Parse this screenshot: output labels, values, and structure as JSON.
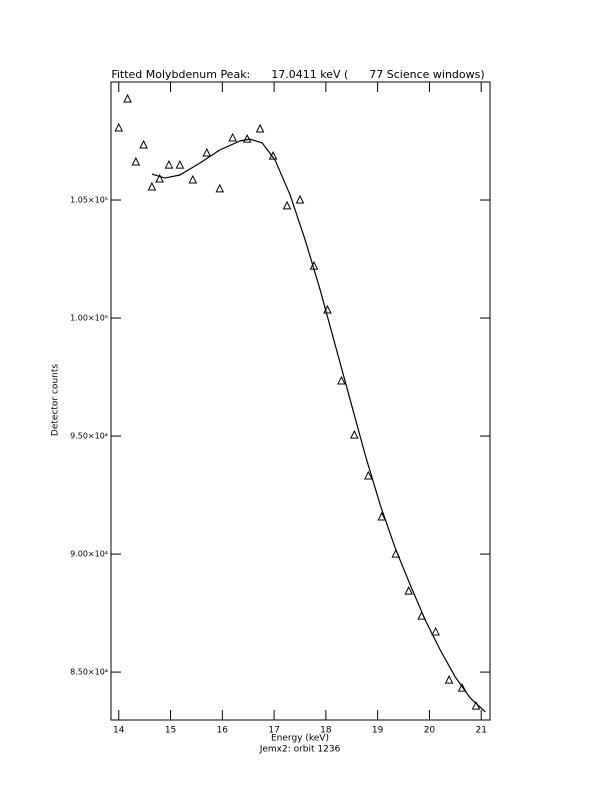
{
  "chart_data": {
    "type": "scatter",
    "title": "Fitted Molybdenum Peak:      17.0411 keV (      77 Science windows)",
    "xlabel": "Energy (keV)",
    "ylabel": "Detector counts",
    "footer": "Jemx2: orbit 1236",
    "xlim": [
      13.85,
      21.17
    ],
    "ylim": [
      82970,
      110000
    ],
    "xticks": [
      14,
      15,
      16,
      17,
      18,
      19,
      20,
      21
    ],
    "yticks": [
      {
        "value": 85000,
        "label": "8.50×10⁴"
      },
      {
        "value": 90000,
        "label": "9.00×10⁴"
      },
      {
        "value": 95000,
        "label": "9.50×10⁴"
      },
      {
        "value": 100000,
        "label": "1.00×10⁵"
      },
      {
        "value": 105000,
        "label": "1.05×10⁵"
      }
    ],
    "series": [
      {
        "type": "scatter",
        "marker": "triangle",
        "color": "#000000",
        "x": [
          14.0,
          14.17,
          14.33,
          14.48,
          14.64,
          14.79,
          14.97,
          15.18,
          15.43,
          15.7,
          15.95,
          16.2,
          16.48,
          16.73,
          16.98,
          17.25,
          17.5,
          17.77,
          18.03,
          18.3,
          18.55,
          18.82,
          19.08,
          19.35,
          19.6,
          19.85,
          20.12,
          20.38,
          20.63,
          20.9
        ],
        "values": [
          108050,
          109280,
          106610,
          107330,
          105550,
          105890,
          106480,
          106480,
          105850,
          106990,
          105470,
          107630,
          107580,
          108010,
          106860,
          104750,
          105000,
          102200,
          100340,
          97330,
          95040,
          93310,
          91570,
          90000,
          88430,
          87370,
          86700,
          84660,
          84320,
          83560
        ]
      },
      {
        "type": "line",
        "color": "#000000",
        "x": [
          14.64,
          14.89,
          15.18,
          15.57,
          15.95,
          16.34,
          16.53,
          16.77,
          17.02,
          17.31,
          17.6,
          17.89,
          18.18,
          18.47,
          18.76,
          19.05,
          19.34,
          19.63,
          19.92,
          20.21,
          20.5,
          20.79,
          21.08
        ],
        "values": [
          106100,
          105930,
          106060,
          106570,
          107120,
          107500,
          107580,
          107420,
          106690,
          105210,
          103310,
          101190,
          98860,
          96530,
          94200,
          92080,
          90250,
          88690,
          87200,
          85930,
          84790,
          83900,
          83310
        ]
      }
    ]
  }
}
